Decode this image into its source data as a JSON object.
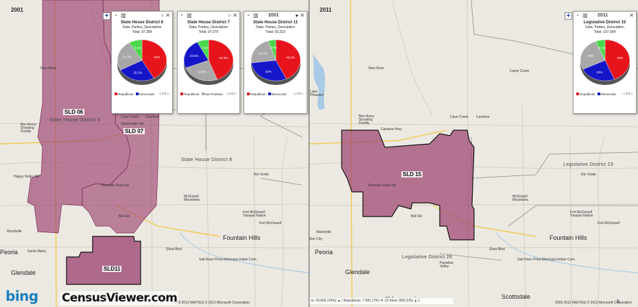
{
  "left_map": {
    "year": "2001",
    "plus": "+",
    "sld_labels": [
      "SLD 06",
      "SLD 07",
      "SLD11"
    ],
    "district_labels": [
      "State House District 6",
      "State House District 8"
    ],
    "places": [
      "New River",
      "Cave Creek",
      "Carefree",
      "Ben Avery Shooting Facility",
      "Rio Verde",
      "McDowell Mountains",
      "Fort McDowell Yavapai Nation",
      "Fort McDowell",
      "Fountain Hills",
      "Peoria",
      "Glendale",
      "Salt River Pima-Maricopa Indian Com",
      "Santa Maria",
      "Woodville",
      "Bell Rd",
      "Shea Blvd",
      "Happy Valley Rd",
      "Pinnacle Peak Rd",
      "Stonecutter Rd"
    ],
    "copyright": "2009 2012 NAVTEQ  © 2012 Microsoft Corporation"
  },
  "right_map": {
    "year": "2011",
    "plus": "+",
    "sld_labels": [
      "SLD 15"
    ],
    "district_labels": [
      "Legislative District 23",
      "Legislative District 28"
    ],
    "places": [
      "New River",
      "Lake Pleasant",
      "Camp Creek",
      "Cave Creek",
      "Carefree",
      "Ben Avery Shooting Facility",
      "Rio Verde",
      "McDowell Mountains",
      "Fort McDowell Yavapai Nation",
      "Fort McDowell",
      "Fountain Hills",
      "Peoria",
      "Glendale",
      "Paradise Valley",
      "Scottsdale",
      "Phoenix",
      "Sun City",
      "Weedville",
      "Salt River Pima-Maricopa Indian Com",
      "Bell Rd",
      "Shea Blvd",
      "Carefree Hwy",
      "Pinnacle Peak Rd"
    ],
    "status_bar": "ar: 25,665 (24%) ▲ | Republican: 7,681 (7%) ▼ | 5 more: 909 (1%) ▲ |",
    "copyright": "2009 2012 NAVTEQ  © 2012 Microsoft Corporation"
  },
  "popups": [
    {
      "title": "State House District 6",
      "subtitle": "Data: Parties_Description",
      "total": "Total: 97,399",
      "toolbar_right": "○ ✕",
      "slices": [
        {
          "label": "42%",
          "value": 42,
          "color": "#e8141c"
        },
        {
          "label": "25.1%",
          "value": 25.1,
          "color": "#1616c9"
        },
        {
          "label": "24.3%",
          "value": 24.3,
          "color": "#a8a8a8"
        },
        {
          "label": "8.6%",
          "value": 8.6,
          "color": "#4cd84c"
        }
      ],
      "legend": [
        "Republican",
        "Democratic"
      ],
      "legend_colors": [
        "#e8141c",
        "#1616c9"
      ],
      "pager": "◁ 1/3 ▷"
    },
    {
      "title": "State House District 7",
      "subtitle": "Data: Parties_Description",
      "total": "Total: 97,575",
      "toolbar_right": "○ ✕",
      "slices": [
        {
          "label": "44.3%",
          "value": 44.3,
          "color": "#e8141c"
        },
        {
          "label": "24.6%",
          "value": 24.6,
          "color": "#a8a8a8"
        },
        {
          "label": "23.5%",
          "value": 23.5,
          "color": "#1616c9"
        },
        {
          "label": "7.6%",
          "value": 7.6,
          "color": "#4cd84c"
        }
      ],
      "legend": [
        "Republican",
        "Non-Partisan"
      ],
      "legend_colors": [
        "#e8141c",
        "#a8a8a8"
      ],
      "pager": "◁ 1/3 ▷"
    },
    {
      "title": "State House District 11",
      "subtitle": "Data: Parties_Description",
      "total": "Total: 93,223",
      "toolbar_year": "2001",
      "toolbar_right": "● ✕",
      "slices": [
        {
          "label": "43.0%",
          "value": 43.0,
          "color": "#e8141c"
        },
        {
          "label": "30%",
          "value": 30,
          "color": "#1616c9"
        },
        {
          "label": "22.1%",
          "value": 22.1,
          "color": "#a8a8a8"
        },
        {
          "label": "4.9%",
          "value": 4.9,
          "color": "#4cd84c"
        }
      ],
      "legend": [
        "Republican",
        "Democratic"
      ],
      "legend_colors": [
        "#e8141c",
        "#1616c9"
      ],
      "pager": "◁ 1/3 ▷"
    },
    {
      "title": "Legislative District 15",
      "subtitle": "Data: Parties_Description",
      "total": "Total: 107,094",
      "toolbar_year": "2011",
      "toolbar_right": "✕",
      "slices": [
        {
          "label": "44%",
          "value": 44,
          "color": "#e8141c"
        },
        {
          "label": "24%",
          "value": 24,
          "color": "#1616c9"
        },
        {
          "label": "26%",
          "value": 26,
          "color": "#a8a8a8"
        },
        {
          "label": "6.3%",
          "value": 6.3,
          "color": "#4cd84c"
        }
      ],
      "legend": [
        "Republican",
        "Democratic"
      ],
      "legend_colors": [
        "#e8141c",
        "#1616c9"
      ],
      "pager": "◁ 1/3 ▷"
    }
  ],
  "logos": {
    "bing": "bing",
    "censusviewer": "CensusViewer.com"
  },
  "colors": {
    "district_fill": "#9b3f6e",
    "district_border": "#111111",
    "map_bg": "#ece9e2",
    "road": "#c9c2b0",
    "water": "#a9cbe8"
  }
}
